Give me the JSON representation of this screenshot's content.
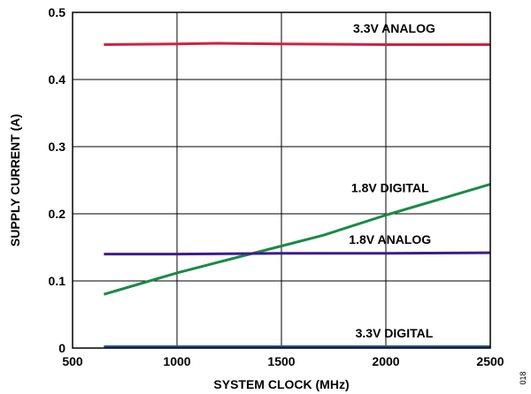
{
  "chart_data": {
    "type": "line",
    "title": "",
    "xlabel": "SYSTEM CLOCK (MHz)",
    "ylabel": "SUPPLY CURRENT (A)",
    "xlim": [
      500,
      2500
    ],
    "ylim": [
      0,
      0.5
    ],
    "x_ticks": [
      500,
      1000,
      1500,
      2000,
      2500
    ],
    "y_ticks": [
      0,
      0.1,
      0.2,
      0.3,
      0.4,
      0.5
    ],
    "x_tick_labels": [
      "500",
      "1000",
      "1500",
      "2000",
      "2500"
    ],
    "y_tick_labels": [
      "0",
      "0.1",
      "0.2",
      "0.3",
      "0.4",
      "0.5"
    ],
    "grid": true,
    "legend": "inline labels",
    "figure_id": "018",
    "series": [
      {
        "name": "3.3V ANALOG",
        "color": "#d2203f",
        "x": [
          650,
          1000,
          1200,
          1500,
          2000,
          2500
        ],
        "y": [
          0.452,
          0.453,
          0.454,
          0.453,
          0.452,
          0.452
        ]
      },
      {
        "name": "1.8V DIGITAL",
        "color": "#1a8a45",
        "x": [
          650,
          1000,
          1200,
          1500,
          1700,
          2000,
          2500
        ],
        "y": [
          0.08,
          0.112,
          0.128,
          0.152,
          0.168,
          0.198,
          0.244
        ]
      },
      {
        "name": "1.8V ANALOG",
        "color": "#3e1b8a",
        "x": [
          650,
          1000,
          1500,
          2000,
          2500
        ],
        "y": [
          0.14,
          0.14,
          0.141,
          0.141,
          0.142
        ]
      },
      {
        "name": "3.3V DIGITAL",
        "color": "#1f4f8f",
        "x": [
          650,
          1000,
          1500,
          2000,
          2500
        ],
        "y": [
          0.002,
          0.002,
          0.002,
          0.002,
          0.002
        ]
      }
    ],
    "label_anchors": [
      {
        "series": "3.3V ANALOG",
        "x": 2040,
        "y": 0.47
      },
      {
        "series": "1.8V DIGITAL",
        "x": 2020,
        "y": 0.232
      },
      {
        "series": "1.8V ANALOG",
        "x": 2020,
        "y": 0.155
      },
      {
        "series": "3.3V DIGITAL",
        "x": 2040,
        "y": 0.016
      }
    ]
  }
}
